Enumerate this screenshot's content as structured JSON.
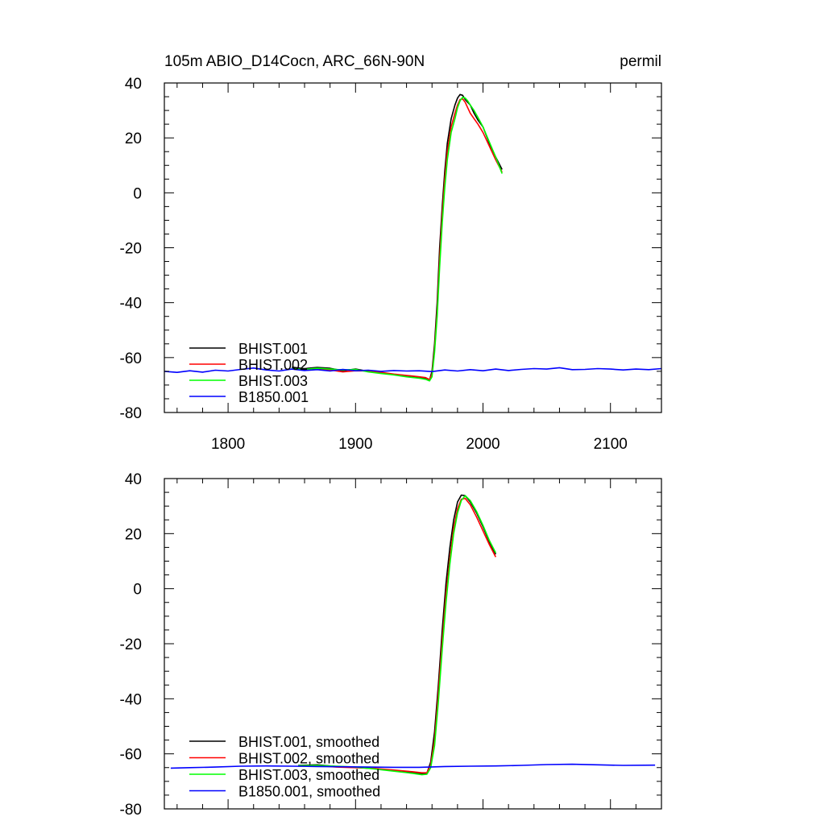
{
  "chart_data": [
    {
      "type": "line",
      "title": "105m ABIO_D14Cocn, ARC_66N-90N",
      "units": "permil",
      "xlim": [
        1750,
        2140
      ],
      "ylim": [
        -80,
        40
      ],
      "xticks": [
        1800,
        1900,
        2000,
        2100
      ],
      "yticks": [
        -80,
        -60,
        -40,
        -20,
        0,
        20,
        40
      ],
      "xtick_labels": [
        "1800",
        "1900",
        "2000",
        "2100"
      ],
      "ytick_labels": [
        "-80",
        "-60",
        "-40",
        "-20",
        "0",
        "20",
        "40"
      ],
      "legend_position": "bottom-left",
      "series": [
        {
          "name": "BHIST.001",
          "color": "#000000",
          "x": [
            1850,
            1860,
            1870,
            1880,
            1890,
            1900,
            1910,
            1920,
            1930,
            1940,
            1950,
            1955,
            1958,
            1960,
            1962,
            1964,
            1966,
            1968,
            1970,
            1972,
            1975,
            1978,
            1980,
            1982,
            1984,
            1986,
            1988,
            1990,
            1993,
            1996,
            2000,
            2005,
            2010,
            2015
          ],
          "y": [
            -63.5,
            -64.0,
            -63.6,
            -63.9,
            -64.8,
            -64.2,
            -65.0,
            -65.6,
            -66.2,
            -66.8,
            -67.2,
            -67.6,
            -68.2,
            -65.0,
            -55.0,
            -40.0,
            -20.0,
            -5.0,
            8.0,
            18.0,
            27.0,
            32.0,
            34.5,
            35.8,
            35.5,
            34.0,
            33.0,
            32.0,
            29.0,
            26.5,
            24.0,
            18.0,
            13.0,
            8.5
          ]
        },
        {
          "name": "BHIST.002",
          "color": "#ff0000",
          "x": [
            1850,
            1860,
            1870,
            1880,
            1890,
            1900,
            1910,
            1920,
            1930,
            1940,
            1950,
            1955,
            1958,
            1960,
            1962,
            1964,
            1966,
            1968,
            1970,
            1972,
            1975,
            1978,
            1980,
            1982,
            1984,
            1986,
            1988,
            1990,
            1993,
            1996,
            2000,
            2005,
            2010,
            2015
          ],
          "y": [
            -64.2,
            -64.5,
            -64.0,
            -64.5,
            -65.2,
            -64.8,
            -64.9,
            -65.4,
            -66.0,
            -66.5,
            -67.0,
            -67.3,
            -68.0,
            -66.0,
            -57.0,
            -43.0,
            -24.0,
            -8.0,
            5.0,
            15.0,
            24.0,
            29.0,
            32.0,
            34.0,
            34.2,
            33.0,
            31.0,
            29.0,
            27.0,
            25.0,
            22.0,
            17.0,
            12.0,
            7.5
          ]
        },
        {
          "name": "BHIST.003",
          "color": "#00ff00",
          "x": [
            1850,
            1860,
            1870,
            1880,
            1890,
            1900,
            1910,
            1920,
            1930,
            1940,
            1950,
            1955,
            1958,
            1960,
            1962,
            1964,
            1966,
            1968,
            1970,
            1972,
            1975,
            1978,
            1980,
            1982,
            1984,
            1986,
            1988,
            1990,
            1993,
            1996,
            2000,
            2005,
            2010,
            2015
          ],
          "y": [
            -64.0,
            -64.3,
            -63.9,
            -64.2,
            -64.5,
            -64.3,
            -65.2,
            -65.8,
            -66.3,
            -67.0,
            -67.5,
            -67.9,
            -68.5,
            -67.0,
            -58.0,
            -45.0,
            -27.0,
            -11.0,
            2.0,
            12.0,
            22.0,
            27.0,
            31.0,
            33.5,
            34.8,
            34.5,
            33.5,
            32.0,
            30.0,
            27.5,
            24.0,
            18.5,
            13.0,
            7.0
          ]
        },
        {
          "name": "B1850.001",
          "color": "#0000ff",
          "x": [
            1750,
            1760,
            1770,
            1780,
            1790,
            1800,
            1810,
            1820,
            1830,
            1840,
            1850,
            1860,
            1870,
            1880,
            1890,
            1900,
            1910,
            1920,
            1930,
            1940,
            1950,
            1960,
            1970,
            1980,
            1990,
            2000,
            2010,
            2020,
            2030,
            2040,
            2050,
            2060,
            2070,
            2080,
            2090,
            2100,
            2110,
            2120,
            2130,
            2140
          ],
          "y": [
            -65.0,
            -65.4,
            -64.8,
            -65.3,
            -64.6,
            -64.9,
            -64.3,
            -63.8,
            -64.5,
            -64.9,
            -64.2,
            -64.7,
            -64.4,
            -64.9,
            -64.3,
            -64.8,
            -64.6,
            -65.0,
            -64.7,
            -64.9,
            -64.8,
            -65.1,
            -64.5,
            -64.9,
            -64.4,
            -64.8,
            -64.2,
            -64.7,
            -64.3,
            -64.0,
            -64.2,
            -63.7,
            -64.4,
            -64.3,
            -64.0,
            -64.2,
            -64.5,
            -64.2,
            -64.4,
            -64.0
          ]
        }
      ]
    },
    {
      "type": "line",
      "title": "",
      "xlim": [
        1750,
        2140
      ],
      "ylim": [
        -80,
        40
      ],
      "xticks": [
        1800,
        1900,
        2000,
        2100
      ],
      "yticks": [
        -80,
        -60,
        -40,
        -20,
        0,
        20,
        40
      ],
      "ytick_labels": [
        "-80",
        "-60",
        "-40",
        "-20",
        "0",
        "20",
        "40"
      ],
      "legend_position": "bottom-left",
      "series": [
        {
          "name": "BHIST.001, smoothed",
          "color": "#000000",
          "x": [
            1855,
            1870,
            1885,
            1900,
            1915,
            1930,
            1945,
            1952,
            1956,
            1959,
            1962,
            1965,
            1968,
            1971,
            1974,
            1977,
            1980,
            1983,
            1986,
            1990,
            1995,
            2000,
            2005,
            2010
          ],
          "y": [
            -64.2,
            -64.0,
            -64.6,
            -64.9,
            -65.4,
            -66.1,
            -66.8,
            -67.2,
            -67.0,
            -63.0,
            -52.0,
            -35.0,
            -15.0,
            2.0,
            15.0,
            25.0,
            31.5,
            34.0,
            33.8,
            31.5,
            27.5,
            22.5,
            17.0,
            12.5
          ]
        },
        {
          "name": "BHIST.002, smoothed",
          "color": "#ff0000",
          "x": [
            1855,
            1870,
            1885,
            1900,
            1915,
            1930,
            1945,
            1952,
            1956,
            1959,
            1962,
            1965,
            1968,
            1971,
            1974,
            1977,
            1980,
            1983,
            1986,
            1990,
            1995,
            2000,
            2005,
            2010
          ],
          "y": [
            -64.5,
            -64.3,
            -64.8,
            -65.0,
            -65.3,
            -65.9,
            -66.5,
            -66.9,
            -66.9,
            -64.0,
            -55.0,
            -38.0,
            -19.0,
            -2.0,
            11.0,
            22.0,
            29.0,
            32.5,
            32.8,
            30.5,
            26.0,
            21.0,
            16.0,
            11.5
          ]
        },
        {
          "name": "BHIST.003, smoothed",
          "color": "#00ff00",
          "x": [
            1855,
            1870,
            1885,
            1900,
            1915,
            1930,
            1945,
            1952,
            1956,
            1959,
            1962,
            1965,
            1968,
            1971,
            1974,
            1977,
            1980,
            1983,
            1986,
            1990,
            1995,
            2000,
            2005,
            2010
          ],
          "y": [
            -64.3,
            -64.2,
            -64.5,
            -64.8,
            -65.5,
            -66.3,
            -67.1,
            -67.6,
            -67.4,
            -65.0,
            -57.0,
            -41.0,
            -22.0,
            -5.0,
            9.0,
            20.0,
            27.5,
            32.0,
            33.8,
            32.0,
            28.0,
            23.0,
            17.5,
            13.0
          ]
        },
        {
          "name": "B1850.001, smoothed",
          "color": "#0000ff",
          "x": [
            1755,
            1770,
            1790,
            1810,
            1830,
            1850,
            1870,
            1890,
            1910,
            1930,
            1950,
            1970,
            1990,
            2010,
            2030,
            2050,
            2070,
            2090,
            2110,
            2135
          ],
          "y": [
            -65.2,
            -65.0,
            -64.8,
            -64.5,
            -64.4,
            -64.5,
            -64.6,
            -64.7,
            -64.8,
            -64.9,
            -64.9,
            -64.6,
            -64.5,
            -64.4,
            -64.2,
            -63.9,
            -63.8,
            -64.0,
            -64.2,
            -64.1
          ]
        }
      ]
    }
  ]
}
